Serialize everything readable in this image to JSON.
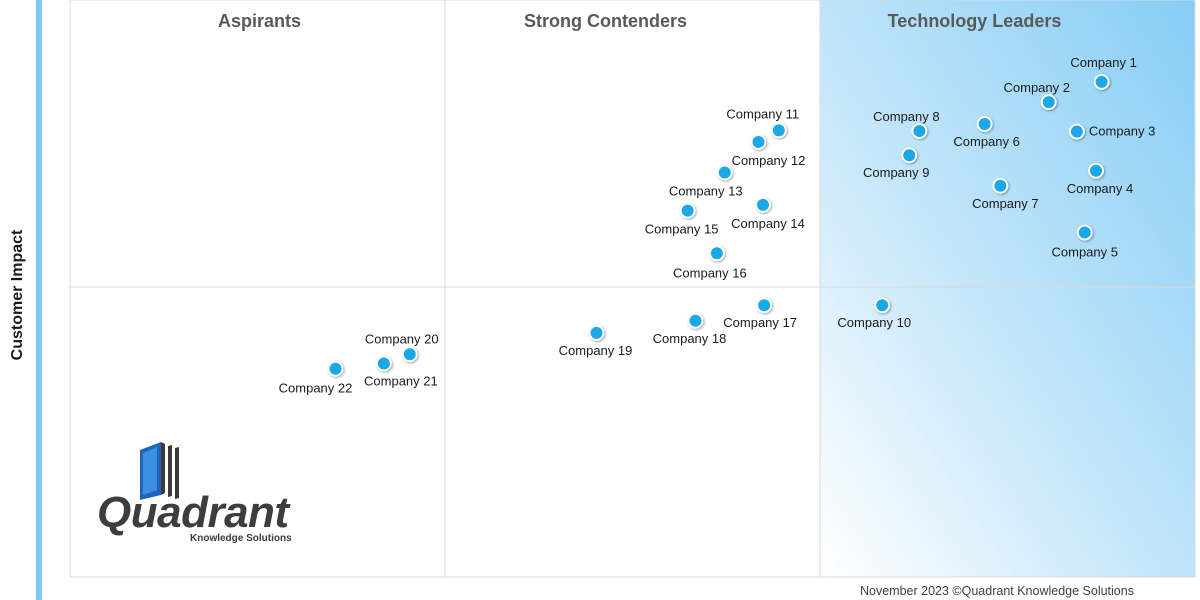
{
  "chart_data": {
    "type": "scatter",
    "title": "",
    "xlabel": "",
    "ylabel": "Customer Impact",
    "xlim": [
      0,
      1
    ],
    "ylim": [
      0,
      1
    ],
    "grid": true,
    "quadrants": [
      {
        "label": "Aspirants"
      },
      {
        "label": "Strong Contenders"
      },
      {
        "label": "Technology Leaders"
      }
    ],
    "points": [
      {
        "name": "Company 1",
        "x": 0.917,
        "y": 0.858
      },
      {
        "name": "Company 2",
        "x": 0.87,
        "y": 0.823
      },
      {
        "name": "Company 3",
        "x": 0.895,
        "y": 0.772
      },
      {
        "name": "Company 4",
        "x": 0.912,
        "y": 0.704
      },
      {
        "name": "Company 5",
        "x": 0.902,
        "y": 0.597
      },
      {
        "name": "Company 6",
        "x": 0.813,
        "y": 0.785
      },
      {
        "name": "Company 7",
        "x": 0.827,
        "y": 0.678
      },
      {
        "name": "Company 8",
        "x": 0.755,
        "y": 0.773
      },
      {
        "name": "Company 9",
        "x": 0.746,
        "y": 0.731
      },
      {
        "name": "Company 10",
        "x": 0.722,
        "y": 0.471
      },
      {
        "name": "Company 11",
        "x": 0.63,
        "y": 0.774
      },
      {
        "name": "Company 12",
        "x": 0.612,
        "y": 0.754
      },
      {
        "name": "Company 13",
        "x": 0.582,
        "y": 0.701
      },
      {
        "name": "Company 14",
        "x": 0.616,
        "y": 0.645
      },
      {
        "name": "Company 15",
        "x": 0.549,
        "y": 0.635
      },
      {
        "name": "Company 16",
        "x": 0.575,
        "y": 0.561
      },
      {
        "name": "Company 17",
        "x": 0.617,
        "y": 0.471
      },
      {
        "name": "Company 18",
        "x": 0.556,
        "y": 0.444
      },
      {
        "name": "Company 19",
        "x": 0.468,
        "y": 0.423
      },
      {
        "name": "Company 20",
        "x": 0.302,
        "y": 0.386
      },
      {
        "name": "Company 21",
        "x": 0.279,
        "y": 0.37
      },
      {
        "name": "Company 22",
        "x": 0.236,
        "y": 0.361
      }
    ]
  },
  "footer": "November 2023 ©Quadrant Knowledge Solutions",
  "logo": {
    "name": "Quadrant",
    "subtitle": "Knowledge Solutions"
  },
  "colors": {
    "point": "#1aa8e6",
    "leader_gradient_start": "#86cdf5",
    "grid": "#d9d9d9",
    "axis_bar": "#7cc8ee",
    "quadrant_title": "#595959"
  }
}
